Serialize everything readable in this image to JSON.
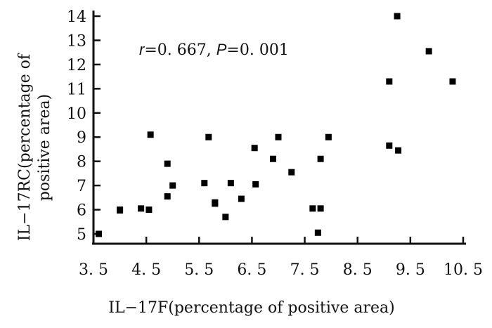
{
  "chart_data": {
    "type": "scatter",
    "xlabel": "IL−17F(percentage of positive area)",
    "ylabel_lines": [
      "IL−17RC(percentage of",
      "positive area)"
    ],
    "xlim": [
      3.5,
      10.5
    ],
    "ylim": [
      5,
      14
    ],
    "x_ticks": [
      3.5,
      4.5,
      5.5,
      6.5,
      7.5,
      8.5,
      9.5,
      10.5
    ],
    "x_tick_labels": [
      "3. 5",
      "4. 5",
      "5. 5",
      "6. 5",
      "7. 5",
      "8. 5",
      "9. 5",
      "10. 5"
    ],
    "y_ticks": [
      5,
      6,
      7,
      8,
      9,
      10,
      11,
      12,
      13,
      14
    ],
    "y_tick_labels": [
      "5",
      "6",
      "7",
      "8",
      "9",
      "10",
      "11",
      "12",
      "13",
      "14"
    ],
    "annotation": {
      "r_symbol": "r",
      "r_text": "=0. 667, ",
      "p_symbol": "P",
      "p_text": "=0. 001"
    },
    "grid": false,
    "points": [
      {
        "x": 3.6,
        "y": 5.0
      },
      {
        "x": 4.0,
        "y": 6.0
      },
      {
        "x": 4.0,
        "y": 5.97
      },
      {
        "x": 4.4,
        "y": 6.05
      },
      {
        "x": 4.55,
        "y": 6.0
      },
      {
        "x": 4.58,
        "y": 9.1
      },
      {
        "x": 4.9,
        "y": 7.9
      },
      {
        "x": 4.9,
        "y": 6.55
      },
      {
        "x": 5.0,
        "y": 7.0
      },
      {
        "x": 5.6,
        "y": 7.1
      },
      {
        "x": 5.68,
        "y": 9.0
      },
      {
        "x": 5.8,
        "y": 6.3
      },
      {
        "x": 5.8,
        "y": 6.25
      },
      {
        "x": 6.0,
        "y": 5.7
      },
      {
        "x": 6.1,
        "y": 7.1
      },
      {
        "x": 6.3,
        "y": 6.45
      },
      {
        "x": 6.55,
        "y": 8.55
      },
      {
        "x": 6.57,
        "y": 7.05
      },
      {
        "x": 6.9,
        "y": 8.1
      },
      {
        "x": 7.0,
        "y": 9.0
      },
      {
        "x": 7.25,
        "y": 7.55
      },
      {
        "x": 7.65,
        "y": 6.05
      },
      {
        "x": 7.75,
        "y": 5.05
      },
      {
        "x": 7.8,
        "y": 8.1
      },
      {
        "x": 7.8,
        "y": 6.05
      },
      {
        "x": 7.95,
        "y": 9.0
      },
      {
        "x": 9.1,
        "y": 11.3
      },
      {
        "x": 9.1,
        "y": 8.65
      },
      {
        "x": 9.25,
        "y": 14.0
      },
      {
        "x": 9.27,
        "y": 8.45
      },
      {
        "x": 9.85,
        "y": 12.55
      },
      {
        "x": 10.3,
        "y": 11.3
      }
    ]
  }
}
